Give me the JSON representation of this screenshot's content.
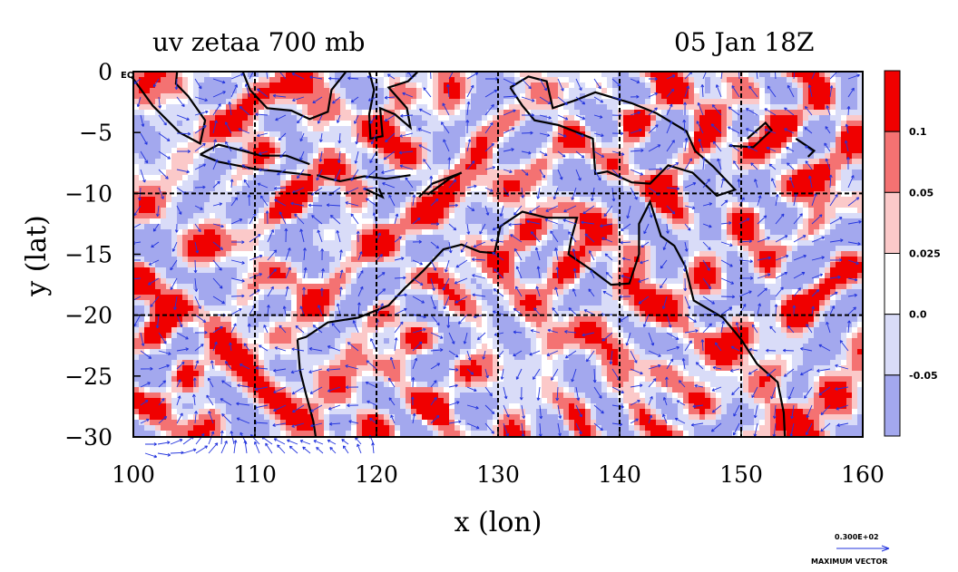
{
  "title_left": "uv zetaa 700 mb",
  "title_right": "05 Jan 18Z",
  "x_axis_label": "x (lon)",
  "y_axis_label": "y (lat)",
  "equator_label": "EQ",
  "x_ticks": [
    {
      "value": 100,
      "label": "100"
    },
    {
      "value": 110,
      "label": "110"
    },
    {
      "value": 120,
      "label": "120"
    },
    {
      "value": 130,
      "label": "130"
    },
    {
      "value": 140,
      "label": "140"
    },
    {
      "value": 150,
      "label": "150"
    },
    {
      "value": 160,
      "label": "160"
    }
  ],
  "y_ticks": [
    {
      "value": 0,
      "label": "0"
    },
    {
      "value": -5,
      "label": "−5"
    },
    {
      "value": -10,
      "label": "−10"
    },
    {
      "value": -15,
      "label": "−15"
    },
    {
      "value": -20,
      "label": "−20"
    },
    {
      "value": -25,
      "label": "−25"
    },
    {
      "value": -30,
      "label": "−30"
    }
  ],
  "lon_range": [
    100,
    160
  ],
  "lat_range": [
    -30,
    0
  ],
  "gridlines_lon": [
    110,
    120,
    130,
    140,
    150
  ],
  "gridlines_lat": [
    -10,
    -20
  ],
  "colorbar": {
    "levels": [
      {
        "color": "#f00000",
        "label": "0.1"
      },
      {
        "color": "#f47272",
        "label": "0.05"
      },
      {
        "color": "#fbc9c9",
        "label": "0.025"
      },
      {
        "color": "#ffffff",
        "label": "0.0"
      },
      {
        "color": "#d9dcf8",
        "label": "-0.05"
      },
      {
        "color": "#a3a8ee",
        "label": ""
      }
    ]
  },
  "vector_legend": {
    "value_label": "0.300E+02",
    "caption": "MAXIMUM VECTOR"
  },
  "colors": {
    "vector": "#2233dd",
    "coast": "#000000",
    "contour": "#e00000"
  }
}
